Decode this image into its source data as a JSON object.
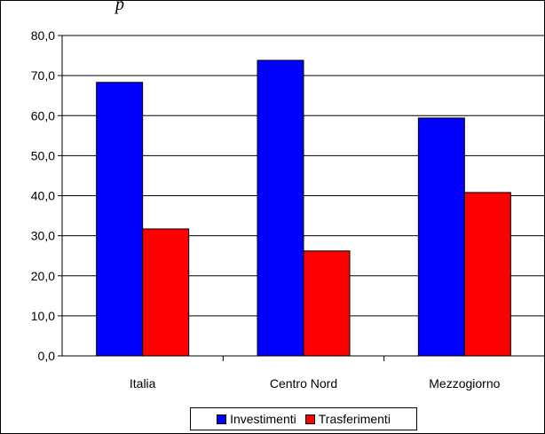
{
  "caption": "p",
  "chart_data": {
    "type": "bar",
    "categories": [
      "Italia",
      "Centro Nord",
      "Mezzogiorno"
    ],
    "series": [
      {
        "name": "Investimenti",
        "values": [
          68.3,
          73.8,
          59.4
        ],
        "color": "#0000ff"
      },
      {
        "name": "Trasferimenti",
        "values": [
          31.7,
          26.2,
          40.8
        ],
        "color": "#ff0000"
      }
    ],
    "ylim": [
      0,
      80
    ],
    "yticks": [
      "0,0",
      "10,0",
      "20,0",
      "30,0",
      "40,0",
      "50,0",
      "60,0",
      "70,0",
      "80,0"
    ],
    "grid": true,
    "legend": "bottom"
  }
}
